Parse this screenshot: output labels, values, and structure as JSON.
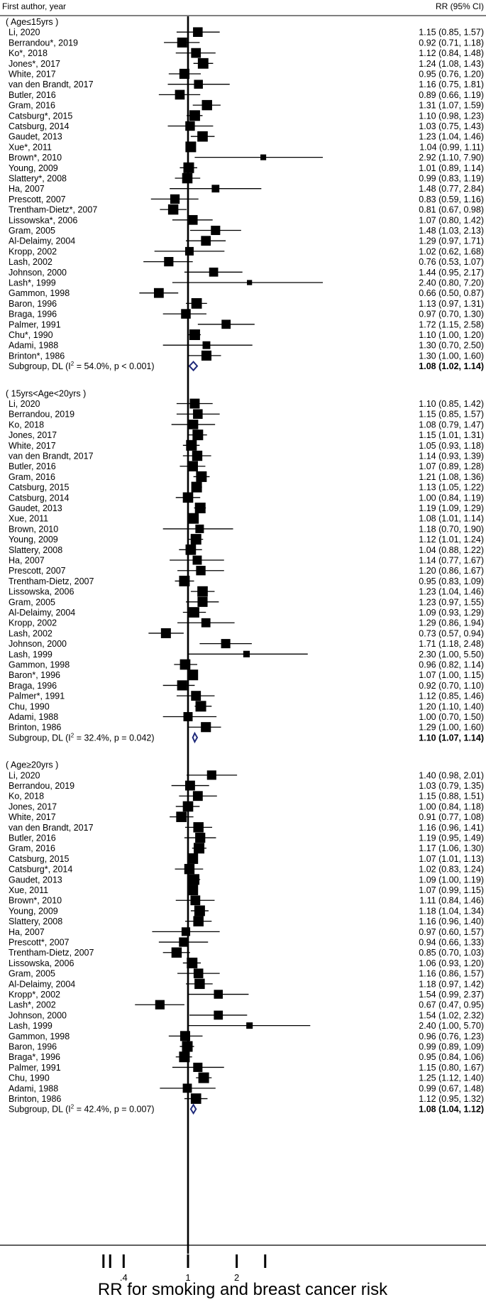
{
  "chart_data": {
    "type": "forest",
    "header_left": "First author, year",
    "header_right": "RR (95% CI)",
    "xlabel": "RR for smoking and breast cancer risk",
    "x_scale": "log",
    "null_value": 1,
    "x_ticks": [
      {
        "value": 0.4,
        "label": ".4"
      },
      {
        "value": 1,
        "label": "1"
      },
      {
        "value": 2,
        "label": "2"
      }
    ],
    "extra_tick_values": [
      0.3,
      0.33,
      3
    ],
    "colors": {
      "marker": "#000000",
      "diamond": "#1f2a7a",
      "line": "#000000"
    },
    "subgroups": [
      {
        "label": "( Age≤15yrs )",
        "summary": {
          "label": "Subgroup, DL (I",
          "sup": "2",
          "rest": " = 54.0%, p < 0.001)",
          "rr": 1.08,
          "lo": 1.02,
          "hi": 1.14,
          "text": "1.08 (1.02, 1.14)"
        },
        "studies": [
          {
            "author": "Li, 2020",
            "rr": 1.15,
            "lo": 0.85,
            "hi": 1.57,
            "text": "1.15 (0.85, 1.57)"
          },
          {
            "author": "Berrandou*, 2019",
            "rr": 0.92,
            "lo": 0.71,
            "hi": 1.18,
            "text": "0.92 (0.71, 1.18)"
          },
          {
            "author": "Ko*, 2018",
            "rr": 1.12,
            "lo": 0.84,
            "hi": 1.48,
            "text": "1.12 (0.84, 1.48)"
          },
          {
            "author": "Jones*, 2017",
            "rr": 1.24,
            "lo": 1.08,
            "hi": 1.43,
            "text": "1.24 (1.08, 1.43)"
          },
          {
            "author": "White, 2017",
            "rr": 0.95,
            "lo": 0.76,
            "hi": 1.2,
            "text": "0.95 (0.76, 1.20)"
          },
          {
            "author": "van den Brandt, 2017",
            "rr": 1.16,
            "lo": 0.75,
            "hi": 1.81,
            "text": "1.16 (0.75, 1.81)"
          },
          {
            "author": "Butler, 2016",
            "rr": 0.89,
            "lo": 0.66,
            "hi": 1.19,
            "text": "0.89 (0.66, 1.19)"
          },
          {
            "author": "Gram, 2016",
            "rr": 1.31,
            "lo": 1.07,
            "hi": 1.59,
            "text": "1.31 (1.07, 1.59)"
          },
          {
            "author": "Catsburg*, 2015",
            "rr": 1.1,
            "lo": 0.98,
            "hi": 1.23,
            "text": "1.10 (0.98, 1.23)"
          },
          {
            "author": "Catsburg, 2014",
            "rr": 1.03,
            "lo": 0.75,
            "hi": 1.43,
            "text": "1.03 (0.75, 1.43)"
          },
          {
            "author": "Gaudet, 2013",
            "rr": 1.23,
            "lo": 1.04,
            "hi": 1.46,
            "text": "1.23 (1.04, 1.46)"
          },
          {
            "author": "Xue*, 2011",
            "rr": 1.04,
            "lo": 0.99,
            "hi": 1.11,
            "text": "1.04 (0.99, 1.11)"
          },
          {
            "author": "Brown*, 2010",
            "rr": 2.92,
            "lo": 1.1,
            "hi": 7.9,
            "text": "2.92 (1.10, 7.90)"
          },
          {
            "author": "Young, 2009",
            "rr": 1.01,
            "lo": 0.89,
            "hi": 1.14,
            "text": "1.01 (0.89, 1.14)"
          },
          {
            "author": "Slattery*, 2008",
            "rr": 0.99,
            "lo": 0.83,
            "hi": 1.19,
            "text": "0.99 (0.83, 1.19)"
          },
          {
            "author": "Ha, 2007",
            "rr": 1.48,
            "lo": 0.77,
            "hi": 2.84,
            "text": "1.48 (0.77, 2.84)"
          },
          {
            "author": "Prescott, 2007",
            "rr": 0.83,
            "lo": 0.59,
            "hi": 1.16,
            "text": "0.83 (0.59, 1.16)"
          },
          {
            "author": "Trentham-Dietz*, 2007",
            "rr": 0.81,
            "lo": 0.67,
            "hi": 0.98,
            "text": "0.81 (0.67, 0.98)"
          },
          {
            "author": "Lissowska*, 2006",
            "rr": 1.07,
            "lo": 0.8,
            "hi": 1.42,
            "text": "1.07 (0.80, 1.42)"
          },
          {
            "author": "Gram, 2005",
            "rr": 1.48,
            "lo": 1.03,
            "hi": 2.13,
            "text": "1.48 (1.03, 2.13)"
          },
          {
            "author": "Al-Delaimy, 2004",
            "rr": 1.29,
            "lo": 0.97,
            "hi": 1.71,
            "text": "1.29 (0.97, 1.71)"
          },
          {
            "author": "Kropp, 2002",
            "rr": 1.02,
            "lo": 0.62,
            "hi": 1.68,
            "text": "1.02 (0.62, 1.68)"
          },
          {
            "author": "Lash, 2002",
            "rr": 0.76,
            "lo": 0.53,
            "hi": 1.07,
            "text": "0.76 (0.53, 1.07)"
          },
          {
            "author": "Johnson, 2000",
            "rr": 1.44,
            "lo": 0.95,
            "hi": 2.17,
            "text": "1.44 (0.95, 2.17)"
          },
          {
            "author": "Lash*, 1999",
            "rr": 2.4,
            "lo": 0.8,
            "hi": 7.2,
            "text": "2.40 (0.80, 7.20)"
          },
          {
            "author": "Gammon, 1998",
            "rr": 0.66,
            "lo": 0.5,
            "hi": 0.87,
            "text": "0.66 (0.50, 0.87)"
          },
          {
            "author": "Baron, 1996",
            "rr": 1.13,
            "lo": 0.97,
            "hi": 1.31,
            "text": "1.13 (0.97, 1.31)"
          },
          {
            "author": "Braga, 1996",
            "rr": 0.97,
            "lo": 0.7,
            "hi": 1.3,
            "text": "0.97 (0.70, 1.30)"
          },
          {
            "author": "Palmer, 1991",
            "rr": 1.72,
            "lo": 1.15,
            "hi": 2.58,
            "text": "1.72 (1.15, 2.58)"
          },
          {
            "author": "Chu*, 1990",
            "rr": 1.1,
            "lo": 1.0,
            "hi": 1.2,
            "text": "1.10 (1.00, 1.20)"
          },
          {
            "author": "Adami, 1988",
            "rr": 1.3,
            "lo": 0.7,
            "hi": 2.5,
            "text": "1.30 (0.70, 2.50)"
          },
          {
            "author": "Brinton*, 1986",
            "rr": 1.3,
            "lo": 1.0,
            "hi": 1.6,
            "text": "1.30 (1.00, 1.60)"
          }
        ]
      },
      {
        "label": "( 15yrs<Age<20yrs )",
        "summary": {
          "label": "Subgroup, DL (I",
          "sup": "2",
          "rest": " = 32.4%, p = 0.042)",
          "rr": 1.1,
          "lo": 1.07,
          "hi": 1.14,
          "text": "1.10 (1.07, 1.14)"
        },
        "studies": [
          {
            "author": "Li, 2020",
            "rr": 1.1,
            "lo": 0.85,
            "hi": 1.42,
            "text": "1.10 (0.85, 1.42)"
          },
          {
            "author": "Berrandou, 2019",
            "rr": 1.15,
            "lo": 0.85,
            "hi": 1.57,
            "text": "1.15 (0.85, 1.57)"
          },
          {
            "author": "Ko, 2018",
            "rr": 1.08,
            "lo": 0.79,
            "hi": 1.47,
            "text": "1.08 (0.79, 1.47)"
          },
          {
            "author": "Jones, 2017",
            "rr": 1.15,
            "lo": 1.01,
            "hi": 1.31,
            "text": "1.15 (1.01, 1.31)"
          },
          {
            "author": "White, 2017",
            "rr": 1.05,
            "lo": 0.93,
            "hi": 1.18,
            "text": "1.05 (0.93, 1.18)"
          },
          {
            "author": "van den Brandt, 2017",
            "rr": 1.14,
            "lo": 0.93,
            "hi": 1.39,
            "text": "1.14 (0.93, 1.39)"
          },
          {
            "author": "Butler, 2016",
            "rr": 1.07,
            "lo": 0.89,
            "hi": 1.28,
            "text": "1.07 (0.89, 1.28)"
          },
          {
            "author": "Gram, 2016",
            "rr": 1.21,
            "lo": 1.08,
            "hi": 1.36,
            "text": "1.21 (1.08, 1.36)"
          },
          {
            "author": "Catsburg, 2015",
            "rr": 1.13,
            "lo": 1.05,
            "hi": 1.22,
            "text": "1.13 (1.05, 1.22)"
          },
          {
            "author": "Catsburg, 2014",
            "rr": 1.0,
            "lo": 0.84,
            "hi": 1.19,
            "text": "1.00 (0.84, 1.19)"
          },
          {
            "author": "Gaudet, 2013",
            "rr": 1.19,
            "lo": 1.09,
            "hi": 1.29,
            "text": "1.19 (1.09, 1.29)"
          },
          {
            "author": "Xue, 2011",
            "rr": 1.08,
            "lo": 1.01,
            "hi": 1.14,
            "text": "1.08 (1.01, 1.14)"
          },
          {
            "author": "Brown, 2010",
            "rr": 1.18,
            "lo": 0.7,
            "hi": 1.9,
            "text": "1.18 (0.70, 1.90)"
          },
          {
            "author": "Young, 2009",
            "rr": 1.12,
            "lo": 1.01,
            "hi": 1.24,
            "text": "1.12 (1.01, 1.24)"
          },
          {
            "author": "Slattery, 2008",
            "rr": 1.04,
            "lo": 0.88,
            "hi": 1.22,
            "text": "1.04 (0.88, 1.22)"
          },
          {
            "author": "Ha, 2007",
            "rr": 1.14,
            "lo": 0.77,
            "hi": 1.67,
            "text": "1.14 (0.77, 1.67)"
          },
          {
            "author": "Prescott, 2007",
            "rr": 1.2,
            "lo": 0.86,
            "hi": 1.67,
            "text": "1.20 (0.86, 1.67)"
          },
          {
            "author": "Trentham-Dietz, 2007",
            "rr": 0.95,
            "lo": 0.83,
            "hi": 1.09,
            "text": "0.95 (0.83, 1.09)"
          },
          {
            "author": "Lissowska, 2006",
            "rr": 1.23,
            "lo": 1.04,
            "hi": 1.46,
            "text": "1.23 (1.04, 1.46)"
          },
          {
            "author": "Gram, 2005",
            "rr": 1.23,
            "lo": 0.97,
            "hi": 1.55,
            "text": "1.23 (0.97, 1.55)"
          },
          {
            "author": "Al-Delaimy, 2004",
            "rr": 1.09,
            "lo": 0.93,
            "hi": 1.29,
            "text": "1.09 (0.93, 1.29)"
          },
          {
            "author": "Kropp, 2002",
            "rr": 1.29,
            "lo": 0.86,
            "hi": 1.94,
            "text": "1.29 (0.86, 1.94)"
          },
          {
            "author": "Lash, 2002",
            "rr": 0.73,
            "lo": 0.57,
            "hi": 0.94,
            "text": "0.73 (0.57, 0.94)"
          },
          {
            "author": "Johnson, 2000",
            "rr": 1.71,
            "lo": 1.18,
            "hi": 2.48,
            "text": "1.71 (1.18, 2.48)"
          },
          {
            "author": "Lash, 1999",
            "rr": 2.3,
            "lo": 1.0,
            "hi": 5.5,
            "text": "2.30 (1.00, 5.50)"
          },
          {
            "author": "Gammon, 1998",
            "rr": 0.96,
            "lo": 0.82,
            "hi": 1.14,
            "text": "0.96 (0.82, 1.14)"
          },
          {
            "author": "Baron*, 1996",
            "rr": 1.07,
            "lo": 1.0,
            "hi": 1.15,
            "text": "1.07 (1.00, 1.15)"
          },
          {
            "author": "Braga, 1996",
            "rr": 0.92,
            "lo": 0.7,
            "hi": 1.1,
            "text": "0.92 (0.70, 1.10)"
          },
          {
            "author": "Palmer*, 1991",
            "rr": 1.12,
            "lo": 0.85,
            "hi": 1.46,
            "text": "1.12 (0.85, 1.46)"
          },
          {
            "author": "Chu, 1990",
            "rr": 1.2,
            "lo": 1.1,
            "hi": 1.4,
            "text": "1.20 (1.10, 1.40)"
          },
          {
            "author": "Adami, 1988",
            "rr": 1.0,
            "lo": 0.7,
            "hi": 1.5,
            "text": "1.00 (0.70, 1.50)"
          },
          {
            "author": "Brinton, 1986",
            "rr": 1.29,
            "lo": 1.0,
            "hi": 1.6,
            "text": "1.29 (1.00, 1.60)"
          }
        ]
      },
      {
        "label": "( Age≥20yrs )",
        "summary": {
          "label": "Subgroup, DL (I",
          "sup": "2",
          "rest": " = 42.4%, p = 0.007)",
          "rr": 1.08,
          "lo": 1.04,
          "hi": 1.12,
          "text": "1.08 (1.04, 1.12)"
        },
        "studies": [
          {
            "author": "Li, 2020",
            "rr": 1.4,
            "lo": 0.98,
            "hi": 2.01,
            "text": "1.40 (0.98, 2.01)"
          },
          {
            "author": "Berrandou, 2019",
            "rr": 1.03,
            "lo": 0.79,
            "hi": 1.35,
            "text": "1.03 (0.79, 1.35)"
          },
          {
            "author": "Ko, 2018",
            "rr": 1.15,
            "lo": 0.88,
            "hi": 1.51,
            "text": "1.15 (0.88, 1.51)"
          },
          {
            "author": "Jones, 2017",
            "rr": 1.0,
            "lo": 0.84,
            "hi": 1.18,
            "text": "1.00 (0.84, 1.18)"
          },
          {
            "author": "White, 2017",
            "rr": 0.91,
            "lo": 0.77,
            "hi": 1.08,
            "text": "0.91 (0.77, 1.08)"
          },
          {
            "author": "van den Brandt, 2017",
            "rr": 1.16,
            "lo": 0.96,
            "hi": 1.41,
            "text": "1.16 (0.96, 1.41)"
          },
          {
            "author": "Butler, 2016",
            "rr": 1.19,
            "lo": 0.95,
            "hi": 1.49,
            "text": "1.19 (0.95, 1.49)"
          },
          {
            "author": "Gram, 2016",
            "rr": 1.17,
            "lo": 1.06,
            "hi": 1.3,
            "text": "1.17 (1.06, 1.30)"
          },
          {
            "author": "Catsburg, 2015",
            "rr": 1.07,
            "lo": 1.01,
            "hi": 1.13,
            "text": "1.07 (1.01, 1.13)"
          },
          {
            "author": "Catsburg*, 2014",
            "rr": 1.02,
            "lo": 0.83,
            "hi": 1.24,
            "text": "1.02 (0.83, 1.24)"
          },
          {
            "author": "Gaudet, 2013",
            "rr": 1.09,
            "lo": 1.0,
            "hi": 1.19,
            "text": "1.09 (1.00, 1.19)"
          },
          {
            "author": "Xue, 2011",
            "rr": 1.07,
            "lo": 0.99,
            "hi": 1.15,
            "text": "1.07 (0.99, 1.15)"
          },
          {
            "author": "Brown*,  2010",
            "rr": 1.11,
            "lo": 0.84,
            "hi": 1.46,
            "text": "1.11 (0.84, 1.46)"
          },
          {
            "author": "Young, 2009",
            "rr": 1.18,
            "lo": 1.04,
            "hi": 1.34,
            "text": "1.18 (1.04, 1.34)"
          },
          {
            "author": "Slattery, 2008",
            "rr": 1.16,
            "lo": 0.96,
            "hi": 1.4,
            "text": "1.16 (0.96, 1.40)"
          },
          {
            "author": "Ha, 2007",
            "rr": 0.97,
            "lo": 0.6,
            "hi": 1.57,
            "text": "0.97 (0.60, 1.57)"
          },
          {
            "author": "Prescott*, 2007",
            "rr": 0.94,
            "lo": 0.66,
            "hi": 1.33,
            "text": "0.94 (0.66, 1.33)"
          },
          {
            "author": "Trentham-Dietz, 2007",
            "rr": 0.85,
            "lo": 0.7,
            "hi": 1.03,
            "text": "0.85 (0.70, 1.03)"
          },
          {
            "author": "Lissowska, 2006",
            "rr": 1.06,
            "lo": 0.93,
            "hi": 1.2,
            "text": "1.06 (0.93, 1.20)"
          },
          {
            "author": "Gram, 2005",
            "rr": 1.16,
            "lo": 0.86,
            "hi": 1.57,
            "text": "1.16 (0.86, 1.57)"
          },
          {
            "author": "Al-Delaimy, 2004",
            "rr": 1.18,
            "lo": 0.97,
            "hi": 1.42,
            "text": "1.18 (0.97, 1.42)"
          },
          {
            "author": "Kropp*, 2002",
            "rr": 1.54,
            "lo": 0.99,
            "hi": 2.37,
            "text": "1.54 (0.99, 2.37)"
          },
          {
            "author": "Lash*, 2002",
            "rr": 0.67,
            "lo": 0.47,
            "hi": 0.95,
            "text": "0.67 (0.47, 0.95)"
          },
          {
            "author": "Johnson, 2000",
            "rr": 1.54,
            "lo": 1.02,
            "hi": 2.32,
            "text": "1.54 (1.02, 2.32)"
          },
          {
            "author": "Lash, 1999",
            "rr": 2.4,
            "lo": 1.0,
            "hi": 5.7,
            "text": "2.40 (1.00, 5.70)"
          },
          {
            "author": "Gammon, 1998",
            "rr": 0.96,
            "lo": 0.76,
            "hi": 1.23,
            "text": "0.96 (0.76, 1.23)"
          },
          {
            "author": "Baron, 1996",
            "rr": 0.99,
            "lo": 0.89,
            "hi": 1.09,
            "text": "0.99 (0.89, 1.09)"
          },
          {
            "author": "Braga*, 1996",
            "rr": 0.95,
            "lo": 0.84,
            "hi": 1.06,
            "text": "0.95 (0.84, 1.06)"
          },
          {
            "author": "Palmer, 1991",
            "rr": 1.15,
            "lo": 0.8,
            "hi": 1.67,
            "text": "1.15 (0.80, 1.67)"
          },
          {
            "author": "Chu, 1990",
            "rr": 1.25,
            "lo": 1.12,
            "hi": 1.4,
            "text": "1.25 (1.12, 1.40)"
          },
          {
            "author": "Adami, 1988",
            "rr": 0.99,
            "lo": 0.67,
            "hi": 1.48,
            "text": "0.99 (0.67, 1.48)"
          },
          {
            "author": "Brinton, 1986",
            "rr": 1.12,
            "lo": 0.95,
            "hi": 1.32,
            "text": "1.12 (0.95, 1.32)"
          }
        ]
      }
    ]
  }
}
